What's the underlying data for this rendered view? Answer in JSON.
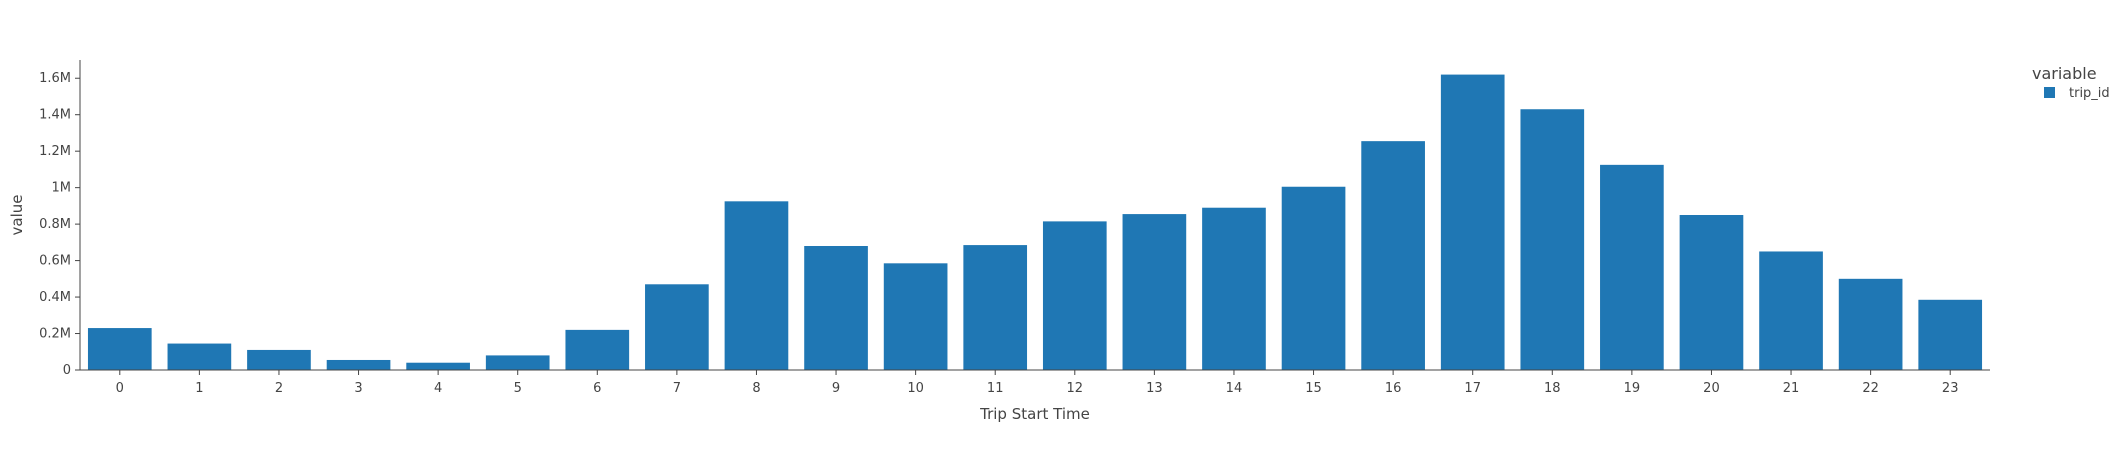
{
  "chart_data": {
    "type": "bar",
    "xlabel": "Trip Start Time",
    "ylabel": "value",
    "categories": [
      "0",
      "1",
      "2",
      "3",
      "4",
      "5",
      "6",
      "7",
      "8",
      "9",
      "10",
      "11",
      "12",
      "13",
      "14",
      "15",
      "16",
      "17",
      "18",
      "19",
      "20",
      "21",
      "22",
      "23"
    ],
    "series": [
      {
        "name": "trip_id",
        "color": "#1f77b4",
        "values": [
          230000,
          145000,
          110000,
          55000,
          40000,
          80000,
          220000,
          470000,
          925000,
          680000,
          585000,
          685000,
          815000,
          855000,
          890000,
          1005000,
          1255000,
          1620000,
          1430000,
          1125000,
          850000,
          650000,
          500000,
          385000
        ]
      }
    ],
    "ylim": [
      0,
      1700000
    ],
    "yticks": [
      0,
      200000,
      400000,
      600000,
      800000,
      1000000,
      1200000,
      1400000,
      1600000
    ],
    "ytick_labels": [
      "0",
      "0.2M",
      "0.4M",
      "0.6M",
      "0.8M",
      "1M",
      "1.2M",
      "1.4M",
      "1.6M"
    ],
    "grid": false,
    "legend": {
      "title": "variable",
      "position": "top-right"
    }
  }
}
